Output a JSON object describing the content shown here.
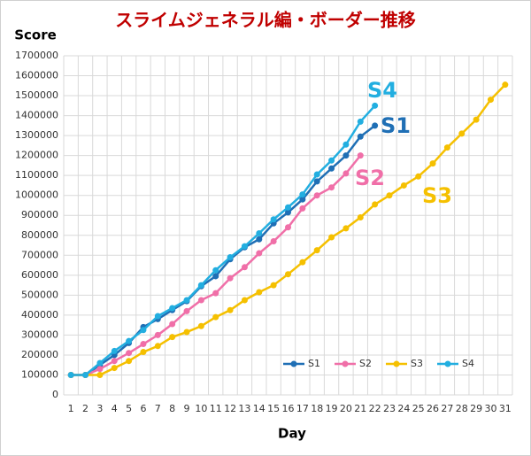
{
  "chart_data": {
    "type": "line",
    "title": "スライムジェネラル編・ボーダー推移",
    "y_label": "Score",
    "x_label": "Day",
    "categories": [
      "1",
      "2",
      "3",
      "4",
      "5",
      "6",
      "7",
      "8",
      "9",
      "10",
      "11",
      "12",
      "13",
      "14",
      "15",
      "16",
      "17",
      "18",
      "19",
      "20",
      "21",
      "22",
      "23",
      "24",
      "25",
      "26",
      "27",
      "28",
      "29",
      "30",
      "31"
    ],
    "series": [
      {
        "name": "S1",
        "color": "#1f6fb5",
        "values": [
          100000,
          100000,
          150000,
          200000,
          260000,
          340000,
          380000,
          425000,
          470000,
          545000,
          595000,
          680000,
          740000,
          780000,
          860000,
          915000,
          980000,
          1070000,
          1135000,
          1200000,
          1295000,
          1350000,
          null,
          null,
          null,
          null,
          null,
          null,
          null,
          null,
          null
        ]
      },
      {
        "name": "S2",
        "color": "#f06fa8",
        "values": [
          100000,
          100000,
          130000,
          170000,
          210000,
          255000,
          300000,
          355000,
          420000,
          475000,
          510000,
          585000,
          640000,
          710000,
          770000,
          840000,
          935000,
          1000000,
          1040000,
          1110000,
          1200000,
          null,
          null,
          null,
          null,
          null,
          null,
          null,
          null,
          null,
          null
        ]
      },
      {
        "name": "S3",
        "color": "#f5c000",
        "values": [
          100000,
          100000,
          100000,
          135000,
          170000,
          215000,
          245000,
          290000,
          315000,
          345000,
          390000,
          425000,
          475000,
          515000,
          550000,
          605000,
          665000,
          725000,
          790000,
          835000,
          890000,
          955000,
          1000000,
          1050000,
          1095000,
          1160000,
          1240000,
          1310000,
          1380000,
          1480000,
          1555000
        ]
      },
      {
        "name": "S4",
        "color": "#22aee0",
        "values": [
          100000,
          100000,
          160000,
          220000,
          270000,
          325000,
          395000,
          435000,
          475000,
          550000,
          625000,
          690000,
          745000,
          810000,
          880000,
          940000,
          1005000,
          1105000,
          1175000,
          1255000,
          1370000,
          1450000,
          null,
          null,
          null,
          null,
          null,
          null,
          null,
          null,
          null
        ]
      }
    ],
    "annotations": [
      {
        "text": "S4",
        "color": "#22aee0"
      },
      {
        "text": "S1",
        "color": "#1f6fb5"
      },
      {
        "text": "S2",
        "color": "#f06fa8"
      },
      {
        "text": "S3",
        "color": "#f5c000"
      }
    ],
    "ylim": [
      0,
      1700000
    ],
    "yticks": [
      0,
      100000,
      200000,
      300000,
      400000,
      500000,
      600000,
      700000,
      800000,
      900000,
      1000000,
      1100000,
      1200000,
      1300000,
      1400000,
      1500000,
      1600000,
      1700000
    ],
    "grid": true,
    "legend": "lower right"
  }
}
